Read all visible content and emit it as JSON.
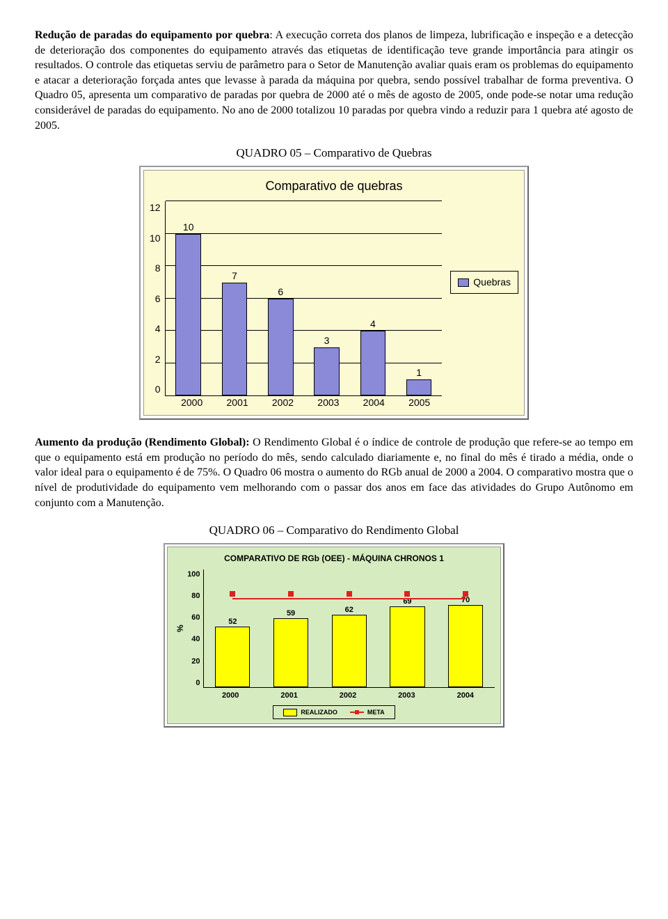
{
  "para1": {
    "bold": "Redução de paradas do equipamento por quebra",
    "rest": ": A execução correta dos planos de limpeza, lubrificação e inspeção e a detecção de deterioração dos componentes do equipamento através das etiquetas de identificação teve grande importância para atingir os resultados. O controle das etiquetas serviu de parâmetro para o Setor de Manutenção avaliar quais eram os problemas do equipamento e atacar a deterioração forçada antes que levasse à parada da máquina por quebra, sendo possível trabalhar de forma preventiva. O Quadro 05, apresenta um comparativo de paradas por quebra de 2000 até o mês de agosto de 2005, onde pode-se notar uma redução considerável de paradas do equipamento. No ano de 2000 totalizou 10 paradas por quebra vindo a reduzir para 1 quebra até agosto de 2005."
  },
  "chart1": {
    "caption": "QUADRO 05 – Comparativo de Quebras",
    "title": "Comparativo de quebras",
    "type": "bar",
    "categories": [
      "2000",
      "2001",
      "2002",
      "2003",
      "2004",
      "2005"
    ],
    "values": [
      10,
      7,
      6,
      3,
      4,
      1
    ],
    "bar_color": "#8a8ad8",
    "background_color": "#fbfad3",
    "ylim": [
      0,
      12
    ],
    "ytick_step": 2,
    "yticks": [
      "12",
      "10",
      "8",
      "6",
      "4",
      "2",
      "0"
    ],
    "legend_label": "Quebras"
  },
  "para2": {
    "bold": "Aumento da produção (Rendimento Global):",
    "rest": " O Rendimento Global é o índice de controle de produção que refere-se ao tempo em que o equipamento está em produção no período do mês, sendo calculado diariamente e, no final do mês é tirado a média, onde o valor ideal para o equipamento é de 75%. O Quadro 06 mostra o aumento do RGb anual de 2000 a 2004. O comparativo mostra que o nível de produtividade do equipamento vem melhorando com o passar dos anos em face das atividades do Grupo Autônomo em conjunto com a Manutenção."
  },
  "chart2": {
    "caption": "QUADRO 06 – Comparativo do Rendimento Global",
    "title": "COMPARATIVO DE RGb (OEE) - MÁQUINA CHRONOS 1",
    "type": "bar-line",
    "categories": [
      "2000",
      "2001",
      "2002",
      "2003",
      "2004"
    ],
    "bar_values": [
      52,
      59,
      62,
      69,
      70
    ],
    "bar_labels": [
      "52",
      "59",
      "62",
      "69",
      "70"
    ],
    "line_value": 75,
    "bar_color": "#ffff00",
    "line_color": "#e02020",
    "background_color": "#d6ecc0",
    "ylim": [
      0,
      100
    ],
    "ytick_step": 20,
    "yticks": [
      "100",
      "80",
      "60",
      "40",
      "20",
      "0"
    ],
    "y_title": "%",
    "legend": {
      "bar": "REALIZADO",
      "line": "META"
    }
  }
}
